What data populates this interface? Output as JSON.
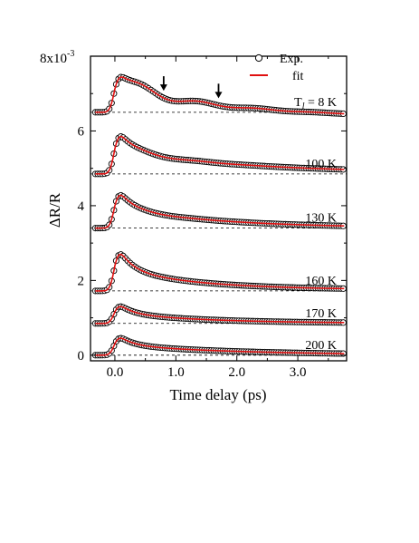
{
  "chart_data": {
    "type": "line",
    "xlabel": "Time delay (ps)",
    "ylabel": "ΔR/R",
    "y_unit_label": "8x10",
    "y_unit_exp": "-3",
    "xlim": [
      -0.4,
      3.8
    ],
    "ylim": [
      -0.15,
      8.0
    ],
    "x_ticks": [
      0.0,
      1.0,
      2.0,
      3.0
    ],
    "x_tick_labels": [
      "0.0",
      "1.0",
      "2.0",
      "3.0"
    ],
    "y_ticks": [
      0,
      2,
      4,
      6
    ],
    "y_tick_labels": [
      "0",
      "2",
      "4",
      "6"
    ],
    "legend": {
      "position": "top-right",
      "items": [
        {
          "label": "Exp.",
          "kind": "marker",
          "color": "#000000"
        },
        {
          "label": "fit",
          "kind": "line",
          "color": "#e01010"
        }
      ]
    },
    "arrows_at_x": [
      0.8,
      1.7
    ],
    "series": [
      {
        "label_prefix": "T",
        "label_sub": "l",
        "label_suffix": " = 8 K",
        "baseline": 6.5,
        "peak": 1.25,
        "tail": -0.21,
        "slow_tau": 3.0,
        "osc_amp": 0.38,
        "osc_period": 0.95,
        "osc_tau": 0.9
      },
      {
        "label": "100 K",
        "baseline": 4.85,
        "peak": 1.35,
        "tail": 0.01,
        "slow_tau": 2.2,
        "osc_amp": 0.12,
        "osc_period": 0.95,
        "osc_tau": 0.6
      },
      {
        "label": "130 K",
        "baseline": 3.4,
        "peak": 1.2,
        "tail": 0.0,
        "slow_tau": 1.7,
        "osc_amp": 0.04,
        "osc_period": 0.95,
        "osc_tau": 0.5
      },
      {
        "label": "160 K",
        "baseline": 1.72,
        "peak": 1.35,
        "tail": 0.03,
        "slow_tau": 1.3,
        "osc_amp": 0.0,
        "osc_period": 1.0,
        "osc_tau": 1.0
      },
      {
        "label": "170 K",
        "baseline": 0.85,
        "peak": 0.62,
        "tail": 0.0,
        "slow_tau": 1.5,
        "osc_amp": 0.0,
        "osc_period": 1.0,
        "osc_tau": 1.0
      },
      {
        "label": "200 K",
        "baseline": 0.0,
        "peak": 0.62,
        "tail": 0.0,
        "slow_tau": 2.0,
        "osc_amp": 0.0,
        "osc_period": 1.0,
        "osc_tau": 1.0
      }
    ],
    "colors": {
      "fit": "#e01010",
      "marker_edge": "#000000",
      "marker_fill": "#ffffff",
      "baseline": "#000000"
    }
  }
}
